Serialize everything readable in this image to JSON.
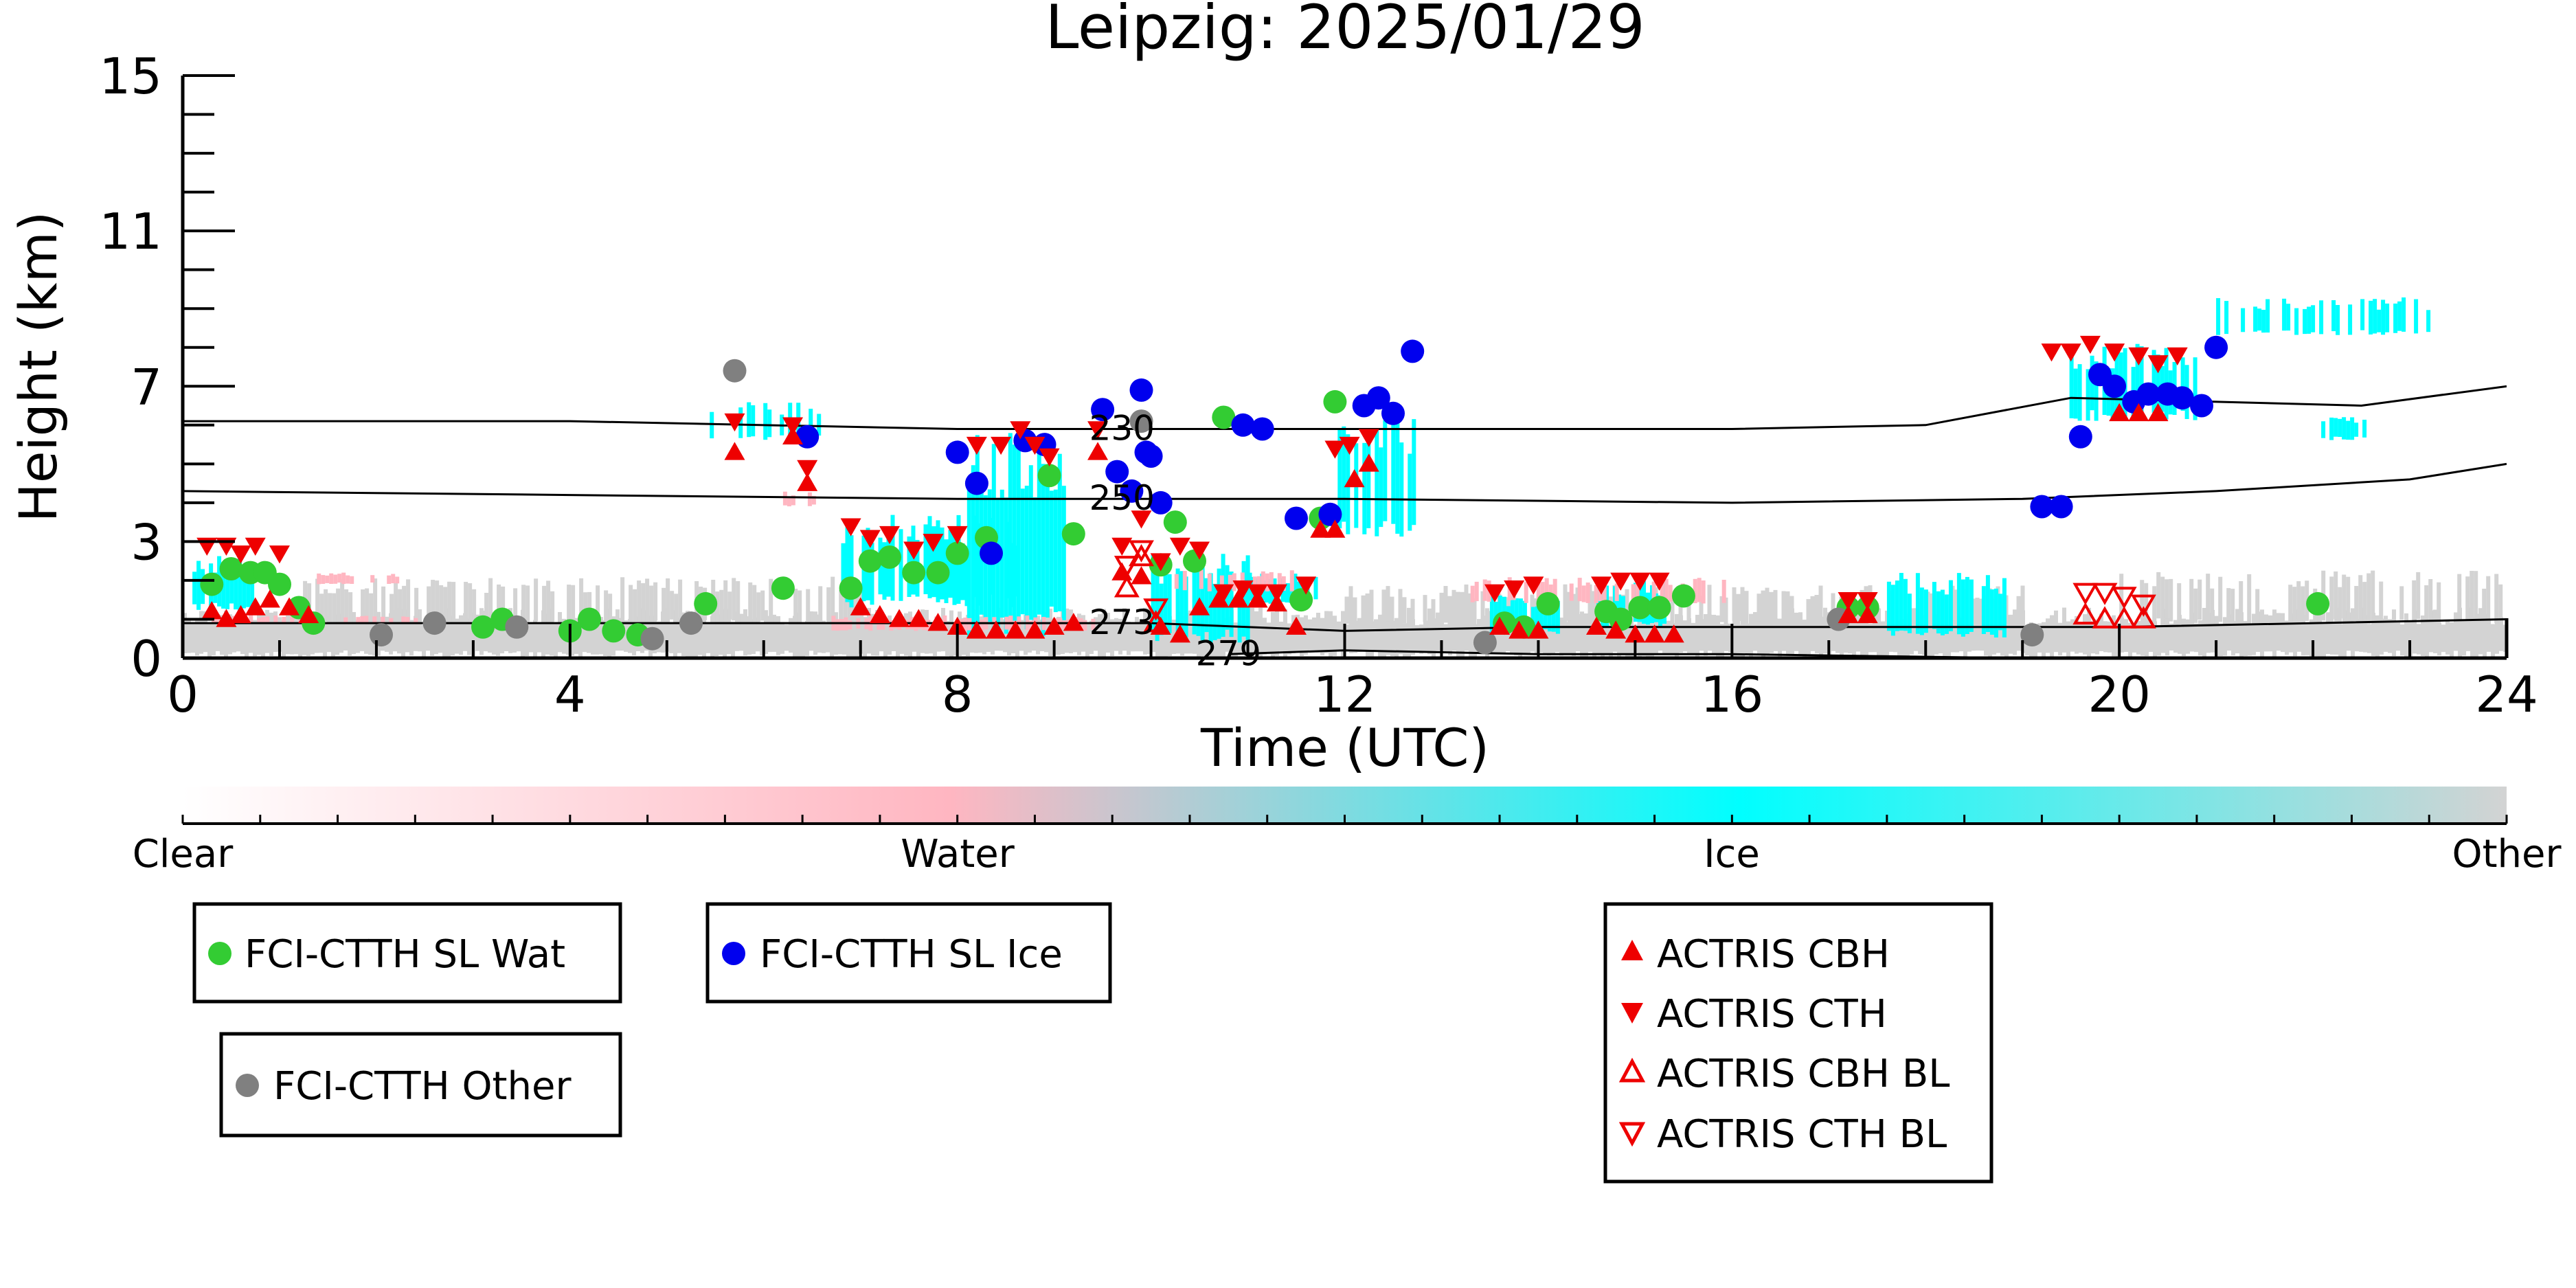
{
  "chart_data": {
    "type": "scatter",
    "title": "Leipzig: 2025/01/29",
    "xlabel": "Time (UTC)",
    "ylabel": "Height (km)",
    "xlim": [
      0,
      24
    ],
    "ylim": [
      0,
      15
    ],
    "x_ticks": [
      "0",
      "4",
      "8",
      "12",
      "16",
      "20",
      "24"
    ],
    "y_ticks": [
      "0",
      "3",
      "7",
      "11",
      "15"
    ],
    "grid": false,
    "colorbar": {
      "labels": [
        "Clear",
        "Water",
        "Ice",
        "Other"
      ],
      "colors": [
        "#ffffff",
        "#ffb6c1",
        "#00ffff",
        "#d3d3d3"
      ]
    },
    "isotherms": [
      {
        "label": "230",
        "x": [
          0,
          4,
          8,
          12,
          16,
          18,
          19.5,
          21,
          22.5,
          24
        ],
        "y": [
          6.1,
          6.1,
          5.9,
          5.9,
          5.9,
          6.0,
          6.7,
          6.6,
          6.5,
          7.0
        ]
      },
      {
        "label": "250",
        "x": [
          0,
          4,
          8,
          12,
          16,
          19,
          21,
          23,
          24
        ],
        "y": [
          4.3,
          4.2,
          4.1,
          4.1,
          4.0,
          4.1,
          4.3,
          4.6,
          5.0
        ]
      },
      {
        "label": "273",
        "x": [
          0,
          4,
          8,
          10,
          12,
          14,
          16,
          20,
          24
        ],
        "y": [
          0.9,
          0.9,
          0.9,
          0.9,
          0.7,
          0.8,
          0.8,
          0.8,
          1.0
        ]
      },
      {
        "label": "279",
        "x": [
          10.8,
          12,
          14,
          16,
          19
        ],
        "y": [
          0.1,
          0.2,
          0.1,
          0.1,
          0.0
        ]
      }
    ],
    "cloud_patches": [
      {
        "class": "Other",
        "x0": 0,
        "x1": 24,
        "y0": 0,
        "y1": 1.3,
        "density": 0.9
      },
      {
        "class": "Other",
        "x0": 1.2,
        "x1": 7,
        "y0": 0.8,
        "y1": 2.1,
        "density": 0.5
      },
      {
        "class": "Other",
        "x0": 12,
        "x1": 19,
        "y0": 0.8,
        "y1": 1.9,
        "density": 0.5
      },
      {
        "class": "Other",
        "x0": 20,
        "x1": 24,
        "y0": 0.8,
        "y1": 2.3,
        "density": 0.5
      },
      {
        "class": "Ice",
        "x0": 0.1,
        "x1": 0.7,
        "y0": 1.2,
        "y1": 2.7,
        "density": 0.8
      },
      {
        "class": "Ice",
        "x0": 6.8,
        "x1": 8.6,
        "y0": 1.3,
        "y1": 3.7,
        "density": 0.7
      },
      {
        "class": "Ice",
        "x0": 8.1,
        "x1": 9.1,
        "y0": 0.5,
        "y1": 6.0,
        "density": 0.9
      },
      {
        "class": "Ice",
        "x0": 10.0,
        "x1": 11.0,
        "y0": 0.4,
        "y1": 2.7,
        "density": 0.7
      },
      {
        "class": "Ice",
        "x0": 11.0,
        "x1": 11.7,
        "y0": 1.4,
        "y1": 2.2,
        "density": 0.7
      },
      {
        "class": "Ice",
        "x0": 11.8,
        "x1": 12.7,
        "y0": 3.1,
        "y1": 6.3,
        "density": 0.6
      },
      {
        "class": "Ice",
        "x0": 17.6,
        "x1": 18.8,
        "y0": 0.5,
        "y1": 2.2,
        "density": 0.8
      },
      {
        "class": "Ice",
        "x0": 19.4,
        "x1": 20.8,
        "y0": 6.1,
        "y1": 8.1,
        "density": 0.7
      },
      {
        "class": "Ice",
        "x0": 21.0,
        "x1": 23.2,
        "y0": 8.3,
        "y1": 9.3,
        "density": 0.3
      },
      {
        "class": "Ice",
        "x0": 5.4,
        "x1": 6.6,
        "y0": 5.6,
        "y1": 6.6,
        "density": 0.3
      },
      {
        "class": "Ice",
        "x0": 13.5,
        "x1": 14.2,
        "y0": 0.6,
        "y1": 1.7,
        "density": 0.8
      },
      {
        "class": "Ice",
        "x0": 14.6,
        "x1": 15.3,
        "y0": 0.8,
        "y1": 2.0,
        "density": 0.7
      },
      {
        "class": "Ice",
        "x0": 22.0,
        "x1": 22.6,
        "y0": 5.6,
        "y1": 6.3,
        "density": 0.5
      },
      {
        "class": "Water",
        "x0": 0.3,
        "x1": 2.5,
        "y0": 0.9,
        "y1": 1.1,
        "density": 0.5
      },
      {
        "class": "Water",
        "x0": 6.7,
        "x1": 9.4,
        "y0": 0.7,
        "y1": 1.1,
        "density": 0.6
      },
      {
        "class": "Water",
        "x0": 10.2,
        "x1": 11.5,
        "y0": 1.7,
        "y1": 2.3,
        "density": 0.4
      },
      {
        "class": "Water",
        "x0": 13.3,
        "x1": 16.0,
        "y0": 1.4,
        "y1": 2.1,
        "density": 0.3
      },
      {
        "class": "Water",
        "x0": 6.2,
        "x1": 6.6,
        "y0": 3.9,
        "y1": 4.3,
        "density": 0.4
      },
      {
        "class": "Water",
        "x0": 1.3,
        "x1": 2.2,
        "y0": 1.9,
        "y1": 2.2,
        "density": 0.3
      }
    ],
    "series": [
      {
        "name": "FCI-CTTH SL Wat",
        "color": "#33cc33",
        "marker": "circle",
        "x": [
          0.3,
          0.5,
          0.7,
          0.85,
          1.0,
          1.2,
          1.35,
          3.1,
          3.3,
          4.0,
          4.2,
          4.45,
          4.7,
          5.4,
          6.2,
          6.9,
          7.1,
          7.3,
          7.55,
          7.8,
          8.0,
          8.3,
          8.95,
          9.2,
          10.1,
          10.25,
          10.45,
          10.75,
          11.55,
          11.75,
          11.9,
          13.65,
          13.85,
          14.1,
          14.7,
          14.85,
          15.05,
          15.25,
          15.5,
          17.2,
          17.4,
          22.05
        ],
        "y": [
          1.9,
          2.3,
          2.2,
          2.2,
          1.9,
          1.3,
          0.9,
          0.8,
          1.0,
          0.7,
          1.0,
          0.7,
          0.6,
          1.4,
          1.8,
          1.8,
          2.5,
          2.6,
          2.2,
          2.2,
          2.7,
          3.1,
          4.7,
          3.2,
          2.4,
          3.5,
          2.5,
          6.2,
          1.5,
          3.6,
          6.6,
          0.9,
          0.8,
          1.4,
          1.2,
          1.0,
          1.3,
          1.3,
          1.6,
          1.3,
          1.3,
          1.4
        ]
      },
      {
        "name": "FCI-CTTH SL Ice",
        "color": "#0000ee",
        "marker": "circle",
        "x": [
          6.45,
          8.0,
          8.2,
          8.35,
          8.7,
          8.9,
          9.5,
          9.65,
          9.8,
          9.9,
          9.95,
          10.0,
          10.1,
          10.95,
          11.15,
          11.5,
          11.85,
          12.2,
          12.35,
          12.5,
          12.7,
          19.2,
          19.4,
          19.6,
          19.8,
          19.95,
          20.15,
          20.3,
          20.5,
          20.65,
          20.85,
          21.0
        ],
        "y": [
          5.7,
          5.3,
          4.5,
          2.7,
          5.6,
          5.5,
          6.4,
          4.8,
          4.3,
          6.9,
          5.3,
          5.2,
          4.0,
          6.0,
          5.9,
          3.6,
          3.7,
          6.5,
          6.7,
          6.3,
          7.9,
          3.9,
          3.9,
          5.7,
          7.3,
          7.0,
          6.6,
          6.8,
          6.8,
          6.7,
          6.5,
          8.0
        ]
      },
      {
        "name": "FCI-CTTH Other",
        "color": "#808080",
        "marker": "circle",
        "x": [
          2.05,
          2.6,
          3.45,
          4.85,
          5.25,
          5.7,
          9.9,
          13.45,
          17.1,
          19.1
        ],
        "y": [
          0.6,
          0.9,
          0.8,
          0.5,
          0.9,
          7.4,
          6.1,
          0.4,
          1.0,
          0.6
        ]
      },
      {
        "name": "ACTRIS CBH",
        "color": "#ee0000",
        "marker": "triangle-up",
        "x": [
          0.3,
          0.45,
          0.6,
          0.75,
          0.9,
          1.1,
          1.3,
          5.7,
          6.3,
          6.45,
          7.0,
          7.2,
          7.4,
          7.6,
          7.8,
          8.0,
          8.2,
          8.4,
          8.6,
          8.8,
          9.0,
          9.2,
          9.45,
          9.7,
          9.9,
          10.1,
          10.3,
          10.5,
          10.7,
          10.9,
          11.1,
          11.3,
          11.5,
          11.75,
          11.9,
          12.1,
          12.25,
          13.6,
          13.8,
          14.0,
          14.6,
          14.8,
          15.0,
          15.2,
          15.4,
          17.2,
          17.4,
          20.0,
          20.2,
          20.4
        ],
        "y": [
          1.2,
          1.0,
          1.1,
          1.3,
          1.5,
          1.3,
          1.1,
          5.3,
          5.7,
          4.5,
          1.3,
          1.1,
          1.0,
          1.0,
          0.9,
          0.8,
          0.7,
          0.7,
          0.7,
          0.7,
          0.8,
          0.9,
          5.3,
          2.2,
          2.1,
          0.8,
          0.6,
          1.3,
          1.5,
          1.5,
          1.5,
          1.4,
          0.8,
          3.3,
          3.3,
          4.6,
          5.0,
          0.8,
          0.7,
          0.7,
          0.8,
          0.7,
          0.6,
          0.6,
          0.6,
          1.1,
          1.1,
          6.3,
          6.3,
          6.3
        ]
      },
      {
        "name": "ACTRIS CTH",
        "color": "#ee0000",
        "marker": "triangle-down",
        "x": [
          0.25,
          0.45,
          0.6,
          0.75,
          1.0,
          5.7,
          6.3,
          6.45,
          6.9,
          7.1,
          7.3,
          7.55,
          7.75,
          8.0,
          8.2,
          8.45,
          8.65,
          8.8,
          8.95,
          9.45,
          9.7,
          9.9,
          10.1,
          10.3,
          10.5,
          10.75,
          10.95,
          11.1,
          11.3,
          11.6,
          11.9,
          12.05,
          12.25,
          13.55,
          13.75,
          13.95,
          14.65,
          14.85,
          15.05,
          15.25,
          17.2,
          17.4,
          19.3,
          19.5,
          19.7,
          19.95,
          20.2,
          20.4,
          20.6
        ],
        "y": [
          2.9,
          2.9,
          2.7,
          2.9,
          2.7,
          6.1,
          6.0,
          4.9,
          3.4,
          3.1,
          3.2,
          2.8,
          3.0,
          3.2,
          5.5,
          5.5,
          5.9,
          5.5,
          5.2,
          5.9,
          2.9,
          3.6,
          2.5,
          2.9,
          2.8,
          1.7,
          1.8,
          1.7,
          1.7,
          1.9,
          5.4,
          5.5,
          5.7,
          1.7,
          1.8,
          1.9,
          1.9,
          2.0,
          2.0,
          2.0,
          1.5,
          1.5,
          7.9,
          7.9,
          8.1,
          7.9,
          7.8,
          7.6,
          7.8
        ]
      },
      {
        "name": "ACTRIS CBH BL",
        "color": "#ee0000",
        "marker": "triangle-up-open",
        "x": [
          9.75,
          9.9,
          10.05,
          19.65,
          19.85,
          20.05,
          20.25
        ],
        "y": [
          1.8,
          2.6,
          0.9,
          1.1,
          1.0,
          1.0,
          1.0
        ]
      },
      {
        "name": "ACTRIS CTH BL",
        "color": "#ee0000",
        "marker": "triangle-down-open",
        "x": [
          9.75,
          9.9,
          10.05,
          19.65,
          19.85,
          20.05,
          20.25
        ],
        "y": [
          2.4,
          2.8,
          1.3,
          1.7,
          1.7,
          1.6,
          1.4
        ]
      }
    ],
    "legend": [
      {
        "label": "FCI-CTTH SL Wat"
      },
      {
        "label": "FCI-CTTH SL Ice"
      },
      {
        "label": "FCI-CTTH Other"
      },
      {
        "labels": [
          "ACTRIS CBH",
          "ACTRIS CTH",
          "ACTRIS CBH BL",
          "ACTRIS CTH BL"
        ]
      }
    ]
  }
}
